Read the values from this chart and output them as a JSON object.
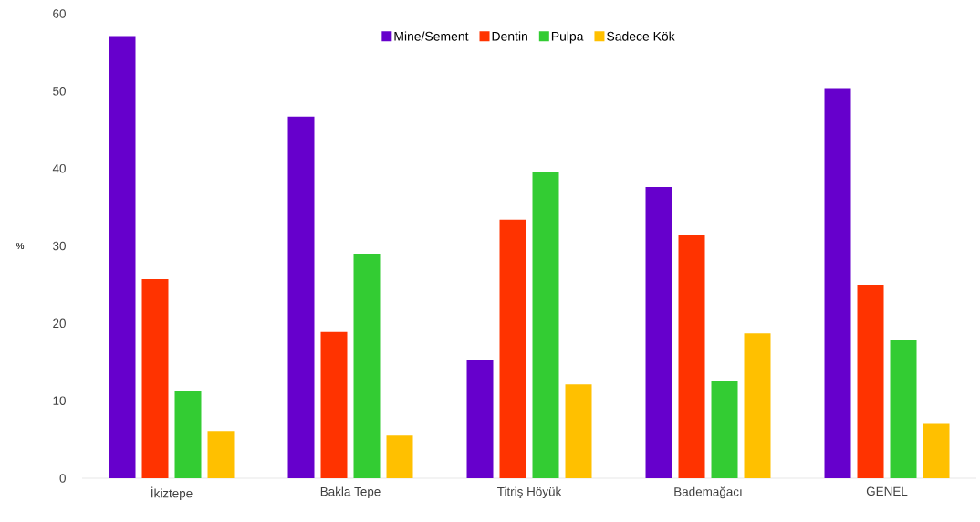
{
  "chart_data": {
    "type": "bar",
    "ylabel": "%",
    "categories": [
      "İkiztepe",
      "Bakla Tepe",
      "Titriş Höyük",
      "Bademağacı",
      "GENEL"
    ],
    "series": [
      {
        "name": "Mine/Sement",
        "color": "#6600cc",
        "values": [
          57.1,
          46.7,
          15.2,
          37.6,
          50.4
        ]
      },
      {
        "name": "Dentin",
        "color": "#ff3300",
        "values": [
          25.7,
          18.9,
          33.4,
          31.4,
          25.0
        ]
      },
      {
        "name": "Pulpa",
        "color": "#33cc33",
        "values": [
          11.2,
          29.0,
          39.5,
          12.5,
          17.8
        ]
      },
      {
        "name": "Sadece Kök",
        "color": "#ffc000",
        "values": [
          6.1,
          5.5,
          12.1,
          18.7,
          7.0
        ]
      }
    ],
    "ylim": [
      0,
      60
    ],
    "yticks": [
      0,
      10,
      20,
      30,
      40,
      50,
      60
    ],
    "legend": "top"
  }
}
